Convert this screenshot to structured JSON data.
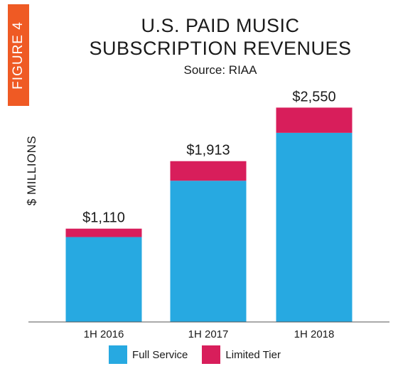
{
  "figure_tag": "FIGURE 4",
  "colors": {
    "tag": "#ef5a24",
    "full_service": "#27a9e1",
    "limited_tier": "#d81e5b",
    "axis": "#555555"
  },
  "chart_data": {
    "type": "bar",
    "stacked": true,
    "title": "U.S. PAID MUSIC SUBSCRIPTION REVENUES",
    "title_lines": [
      "U.S. PAID MUSIC",
      "SUBSCRIPTION REVENUES"
    ],
    "subtitle": "Source: RIAA",
    "ylabel": "$ MILLIONS",
    "xlabel": "",
    "categories": [
      "1H 2016",
      "1H 2017",
      "1H 2018"
    ],
    "series": [
      {
        "name": "Full Service",
        "values": [
          1010,
          1680,
          2250
        ]
      },
      {
        "name": "Limited Tier",
        "values": [
          100,
          233,
          300
        ]
      }
    ],
    "totals": [
      1110,
      1913,
      2550
    ],
    "total_labels": [
      "$1,110",
      "$1,913",
      "$2,550"
    ],
    "ylim": [
      0,
      2900
    ],
    "grid": false,
    "legend_position": "bottom"
  }
}
